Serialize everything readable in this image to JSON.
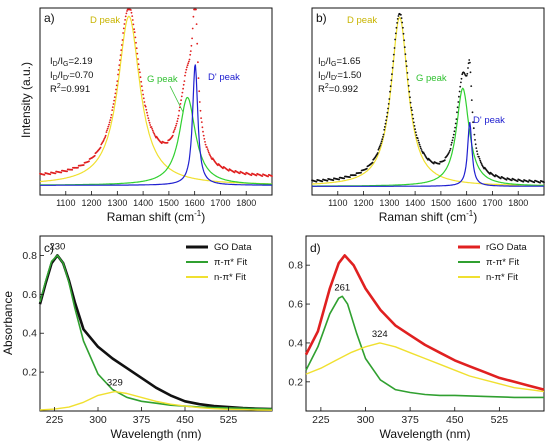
{
  "chart_data": [
    {
      "panel": "a)",
      "type": "line",
      "xlabel": "Raman shift (cm⁻¹)",
      "ylabel": "Intensity (a.u.)",
      "xlim": [
        1000,
        1900
      ],
      "xticks": [
        "1100",
        "1200",
        "1300",
        "1400",
        "1500",
        "1600",
        "1700",
        "1800"
      ],
      "annotations": {
        "id_ig": "2.19",
        "id_id2": "0.70",
        "r2": "0.991"
      },
      "peak_labels": {
        "d": "D peak",
        "g": "G peak",
        "d2": "D' peak"
      },
      "colors": {
        "data": "#e02020",
        "d": "#f0e030",
        "g": "#30d030",
        "d2": "#2020d0"
      },
      "peaks": {
        "d": [
          1345,
          1.0,
          52
        ],
        "g": [
          1572,
          0.52,
          38
        ],
        "d2": [
          1602,
          0.72,
          12
        ]
      },
      "baseline": 0.05,
      "series": [
        {
          "values": {
            "x": [
              1000,
              1100,
              1200,
              1300,
              1345,
              1400,
              1500,
              1572,
              1602,
              1700,
              1800,
              1900
            ],
            "y": [
              0.11,
              0.14,
              0.25,
              0.77,
              1.05,
              0.6,
              0.44,
              0.88,
              1.12,
              0.18,
              0.11,
              0.08
            ]
          }
        }
      ]
    },
    {
      "panel": "b)",
      "type": "line",
      "xlabel": "Raman shift (cm⁻¹)",
      "ylabel": "",
      "xlim": [
        1000,
        1900
      ],
      "xticks": [
        "1100",
        "1200",
        "1300",
        "1400",
        "1500",
        "1600",
        "1700",
        "1800"
      ],
      "annotations": {
        "id_ig": "1.65",
        "id_id2": "1.50",
        "r2": "0.992"
      },
      "peak_labels": {
        "d": "D peak",
        "g": "G peak",
        "d2": "D' peak"
      },
      "colors": {
        "data": "#111111",
        "d": "#f0e030",
        "g": "#30d030",
        "d2": "#2020d0"
      },
      "peaks": {
        "d": [
          1340,
          1.0,
          40
        ],
        "g": [
          1585,
          0.58,
          30
        ],
        "d2": [
          1612,
          0.38,
          10
        ]
      },
      "baseline": 0.02,
      "series": [
        {
          "values": {
            "x": [
              1000,
              1100,
              1200,
              1300,
              1340,
              1400,
              1500,
              1585,
              1612,
              1700,
              1800,
              1900
            ],
            "y": [
              0.03,
              0.05,
              0.13,
              0.7,
              1.02,
              0.45,
              0.3,
              0.75,
              0.8,
              0.07,
              0.04,
              0.03
            ]
          }
        }
      ]
    },
    {
      "panel": "c)",
      "type": "line",
      "xlabel": "Wavelength (nm)",
      "ylabel": "Absorbance",
      "xlim": [
        200,
        600
      ],
      "ylim": [
        0.0,
        0.9
      ],
      "xticks": [
        225,
        300,
        375,
        450,
        525
      ],
      "yticks": [
        0.2,
        0.4,
        0.6,
        0.8
      ],
      "peak_annotations": [
        {
          "text": "230",
          "x": 230,
          "y": 0.8
        },
        {
          "text": "329",
          "x": 329,
          "y": 0.1
        }
      ],
      "colors": {
        "data": "#111111",
        "fit1": "#30a030",
        "fit2": "#f0e030"
      },
      "series": [
        {
          "name": "GO Data",
          "x": [
            200,
            210,
            220,
            230,
            240,
            250,
            260,
            275,
            300,
            325,
            350,
            375,
            400,
            425,
            450,
            475,
            500,
            525,
            550,
            575,
            600
          ],
          "values": [
            0.55,
            0.66,
            0.76,
            0.8,
            0.76,
            0.67,
            0.56,
            0.42,
            0.33,
            0.27,
            0.22,
            0.17,
            0.12,
            0.08,
            0.05,
            0.035,
            0.025,
            0.02,
            0.015,
            0.012,
            0.01
          ]
        },
        {
          "name": "π-π* Fit",
          "x": [
            200,
            210,
            220,
            230,
            240,
            250,
            260,
            275,
            300,
            325,
            350,
            375,
            400,
            425,
            450,
            475,
            500,
            525,
            550,
            575,
            600
          ],
          "values": [
            0.56,
            0.67,
            0.77,
            0.8,
            0.76,
            0.66,
            0.53,
            0.36,
            0.19,
            0.11,
            0.07,
            0.05,
            0.04,
            0.03,
            0.025,
            0.02,
            0.018,
            0.016,
            0.014,
            0.012,
            0.01
          ]
        },
        {
          "name": "n-π* Fit",
          "x": [
            200,
            225,
            250,
            275,
            300,
            329,
            350,
            375,
            400,
            425,
            450,
            475,
            500,
            525,
            550,
            575,
            600
          ],
          "values": [
            0.005,
            0.01,
            0.02,
            0.045,
            0.08,
            0.1,
            0.09,
            0.07,
            0.05,
            0.035,
            0.025,
            0.017,
            0.012,
            0.009,
            0.007,
            0.005,
            0.004
          ]
        }
      ]
    },
    {
      "panel": "d)",
      "type": "line",
      "xlabel": "Wavelength (nm)",
      "ylabel": "",
      "xlim": [
        200,
        600
      ],
      "ylim": [
        0.05,
        0.95
      ],
      "xticks": [
        225,
        300,
        375,
        450,
        525
      ],
      "yticks": [
        0.2,
        0.4,
        0.6,
        0.8
      ],
      "peak_annotations": [
        {
          "text": "261",
          "x": 261,
          "y": 0.64
        },
        {
          "text": "324",
          "x": 324,
          "y": 0.4
        }
      ],
      "colors": {
        "data": "#e02020",
        "fit1": "#30a030",
        "fit2": "#f0e030"
      },
      "series": [
        {
          "name": "rGO Data",
          "x": [
            200,
            220,
            240,
            255,
            265,
            280,
            300,
            325,
            350,
            375,
            400,
            425,
            450,
            475,
            500,
            525,
            550,
            575,
            600
          ],
          "values": [
            0.34,
            0.46,
            0.68,
            0.81,
            0.85,
            0.8,
            0.68,
            0.57,
            0.49,
            0.44,
            0.39,
            0.35,
            0.31,
            0.28,
            0.25,
            0.22,
            0.2,
            0.18,
            0.16
          ]
        },
        {
          "name": "π-π* Fit",
          "x": [
            200,
            220,
            240,
            255,
            261,
            270,
            285,
            300,
            325,
            350,
            375,
            400,
            425,
            450,
            500,
            550,
            600
          ],
          "values": [
            0.26,
            0.38,
            0.55,
            0.63,
            0.64,
            0.6,
            0.45,
            0.32,
            0.21,
            0.16,
            0.145,
            0.135,
            0.13,
            0.13,
            0.125,
            0.12,
            0.12
          ]
        },
        {
          "name": "n-π* Fit",
          "x": [
            200,
            225,
            250,
            275,
            300,
            324,
            350,
            375,
            400,
            425,
            450,
            475,
            500,
            525,
            550,
            575,
            600
          ],
          "values": [
            0.24,
            0.27,
            0.31,
            0.35,
            0.38,
            0.4,
            0.38,
            0.35,
            0.32,
            0.29,
            0.26,
            0.23,
            0.21,
            0.19,
            0.17,
            0.16,
            0.15
          ]
        }
      ]
    }
  ]
}
